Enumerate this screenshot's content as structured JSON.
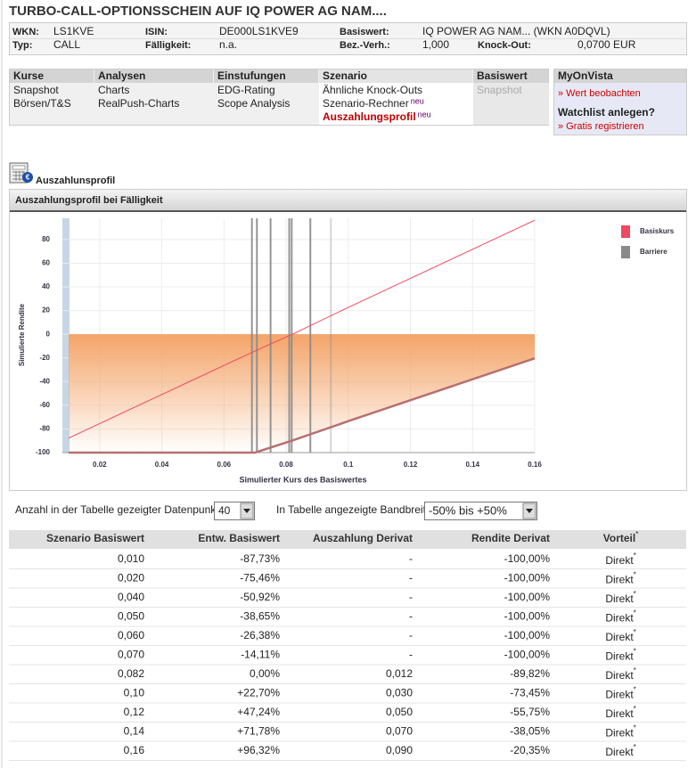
{
  "header": {
    "title": "TURBO-CALL-OPTIONSSCHEIN AUF IQ POWER AG NAM...."
  },
  "info": {
    "rows": [
      [
        {
          "label": "WKN:",
          "value": "LS1KVE"
        },
        {
          "label": "ISIN:",
          "value": "DE000LS1KVE9"
        },
        {
          "label": "Basiswert:",
          "value": "IQ POWER AG NAM... (WKN A0DQVL)"
        }
      ],
      [
        {
          "label": "Typ:",
          "value": "CALL"
        },
        {
          "label": "Fälligkeit:",
          "value": "n.a."
        },
        {
          "label": "Bez.-Verh.:",
          "value": "1,000"
        },
        {
          "label": "Knock-Out:",
          "value": "0,0700 EUR"
        }
      ]
    ]
  },
  "nav": {
    "columns": [
      {
        "title": "Kurse",
        "links": [
          {
            "text": "Snapshot"
          },
          {
            "text": "Börsen/T&S"
          }
        ]
      },
      {
        "title": "Analysen",
        "links": [
          {
            "text": "Charts"
          },
          {
            "text": "RealPush-Charts"
          }
        ]
      },
      {
        "title": "Einstufungen",
        "links": [
          {
            "text": "EDG-Rating"
          },
          {
            "text": "Scope Analysis"
          }
        ]
      },
      {
        "title": "Szenario",
        "links": [
          {
            "text": "Ähnliche Knock-Outs"
          },
          {
            "text": "Szenario-Rechner",
            "badge": "neu"
          },
          {
            "text": "Auszahlungsprofil",
            "badge": "neu",
            "active": true
          }
        ]
      },
      {
        "title": "Basiswert",
        "links": [
          {
            "text": "Snapshot",
            "disabled": true
          }
        ]
      }
    ]
  },
  "myonvista": {
    "title": "MyOnVista",
    "watch": "» Wert beobachten",
    "question": "Watchlist anlegen?",
    "register": "» Gratis registrieren"
  },
  "section": {
    "title": "Auszahlunsprofil"
  },
  "chart_data": {
    "type": "line",
    "title": "Auszahlungsprofil bei Fälligkeit",
    "x_label": "Simulierter Kurs des Basiswertes",
    "y_label": "Simulierte Rendite",
    "x": [
      0.01,
      0.02,
      0.04,
      0.05,
      0.06,
      0.07,
      0.082,
      0.1,
      0.12,
      0.14,
      0.16
    ],
    "series": [
      {
        "name": "Basiskurs",
        "color": "#f04860",
        "values": [
          -87.73,
          -75.46,
          -50.92,
          -38.65,
          -26.38,
          -14.11,
          0,
          22.7,
          47.24,
          71.78,
          96.32
        ]
      },
      {
        "color": "#b87070",
        "area_color": "#f4a468",
        "values": [
          -100,
          -100,
          -100,
          -100,
          -100,
          -100,
          -89.82,
          -73.45,
          -55.75,
          -38.05,
          -20.35
        ]
      }
    ],
    "barriers": {
      "name": "Barriere",
      "color": "#8a8a8a",
      "x": [
        0.069,
        0.0706,
        0.075,
        0.081,
        0.0818,
        0.0878,
        0.0944
      ]
    },
    "xlim": [
      0.008,
      0.16
    ],
    "ylim": [
      -100,
      98
    ],
    "xticks": [
      0.02,
      0.04,
      0.06,
      0.08,
      0.1,
      0.12,
      0.14,
      0.16
    ],
    "yticks": [
      -100,
      -80,
      -60,
      -40,
      -20,
      0,
      20,
      40,
      60,
      80
    ],
    "grid": true,
    "legend": "right"
  },
  "controls": {
    "points_label": "Anzahl in der Tabelle gezeigter Datenpunkte:",
    "points_value": "40",
    "band_label": "In Tabelle angezeigte Bandbreite:",
    "band_value": "-50% bis  +50%"
  },
  "table": {
    "columns": [
      "Szenario Basiswert",
      "Entw. Basiswert",
      "Auszahlung Derivat",
      "Rendite Derivat",
      "Vorteil"
    ],
    "note_mark": "*",
    "rows": [
      [
        "0,010",
        "-87,73%",
        "-",
        "-100,00%",
        "Direkt"
      ],
      [
        "0,020",
        "-75,46%",
        "-",
        "-100,00%",
        "Direkt"
      ],
      [
        "0,040",
        "-50,92%",
        "-",
        "-100,00%",
        "Direkt"
      ],
      [
        "0,050",
        "-38,65%",
        "-",
        "-100,00%",
        "Direkt"
      ],
      [
        "0,060",
        "-26,38%",
        "-",
        "-100,00%",
        "Direkt"
      ],
      [
        "0,070",
        "-14,11%",
        "-",
        "-100,00%",
        "Direkt"
      ],
      [
        "0,082",
        "0,00%",
        "0,012",
        "-89,82%",
        "Direkt"
      ],
      [
        "0,10",
        "+22,70%",
        "0,030",
        "-73,45%",
        "Direkt"
      ],
      [
        "0,12",
        "+47,24%",
        "0,050",
        "-55,75%",
        "Direkt"
      ],
      [
        "0,14",
        "+71,78%",
        "0,070",
        "-38,05%",
        "Direkt"
      ],
      [
        "0,16",
        "+96,32%",
        "0,090",
        "-20,35%",
        "Direkt"
      ]
    ]
  }
}
